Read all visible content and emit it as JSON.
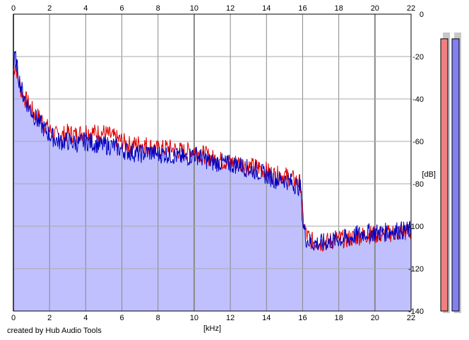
{
  "chart_data": {
    "type": "line",
    "title": "",
    "xlabel": "[kHz]",
    "ylabel": "[dB]",
    "xlim": [
      0,
      22
    ],
    "ylim": [
      -140,
      0
    ],
    "xticks": [
      "0",
      "2",
      "4",
      "6",
      "8",
      "10",
      "12",
      "14",
      "16",
      "18",
      "20",
      "22"
    ],
    "yticks": [
      "0",
      "-20",
      "-40",
      "-60",
      "-80",
      "-100",
      "-120",
      "-140"
    ],
    "grid": true,
    "series": [
      {
        "color": "#e00000",
        "x": [
          0,
          0.1,
          0.3,
          0.5,
          0.8,
          1.0,
          1.3,
          1.6,
          2.0,
          2.5,
          3.0,
          3.5,
          4.0,
          4.5,
          5.0,
          5.5,
          6.0,
          6.5,
          7.0,
          7.5,
          8.0,
          8.5,
          9.0,
          9.5,
          10.0,
          10.5,
          11.0,
          11.5,
          12.0,
          12.5,
          13.0,
          13.5,
          14.0,
          14.5,
          15.0,
          15.5,
          15.9,
          16.0,
          16.2,
          16.5,
          17.0,
          17.5,
          18.0,
          18.5,
          19.0,
          19.5,
          20.0,
          20.5,
          21.0,
          21.5,
          22.0
        ],
        "y": [
          -30,
          -22,
          -32,
          -38,
          -42,
          -45,
          -48,
          -50,
          -55,
          -58,
          -56,
          -57,
          -55,
          -56,
          -56,
          -58,
          -60,
          -62,
          -61,
          -62,
          -64,
          -63,
          -64,
          -65,
          -64,
          -66,
          -68,
          -69,
          -70,
          -70,
          -72,
          -72,
          -74,
          -76,
          -76,
          -78,
          -80,
          -96,
          -104,
          -107,
          -108,
          -107,
          -106,
          -106,
          -105,
          -104,
          -104,
          -104,
          -103,
          -103,
          -103
        ]
      },
      {
        "color": "#0000c0",
        "x": [
          0,
          0.1,
          0.3,
          0.5,
          0.8,
          1.0,
          1.3,
          1.6,
          2.0,
          2.5,
          3.0,
          3.5,
          4.0,
          4.5,
          5.0,
          5.5,
          6.0,
          6.5,
          7.0,
          7.5,
          8.0,
          8.5,
          9.0,
          9.5,
          10.0,
          10.5,
          11.0,
          11.5,
          12.0,
          12.5,
          13.0,
          13.5,
          14.0,
          14.5,
          15.0,
          15.5,
          15.9,
          16.0,
          16.2,
          16.5,
          17.0,
          17.5,
          18.0,
          18.5,
          19.0,
          19.5,
          20.0,
          20.5,
          21.0,
          21.5,
          22.0
        ],
        "y": [
          -25,
          -20,
          -30,
          -37,
          -43,
          -46,
          -50,
          -53,
          -57,
          -60,
          -60,
          -61,
          -60,
          -61,
          -62,
          -62,
          -64,
          -65,
          -66,
          -65,
          -66,
          -66,
          -67,
          -68,
          -66,
          -68,
          -70,
          -70,
          -71,
          -71,
          -73,
          -74,
          -76,
          -78,
          -78,
          -80,
          -82,
          -98,
          -106,
          -108,
          -108,
          -107,
          -106,
          -106,
          -104,
          -103,
          -103,
          -103,
          -102,
          -102,
          -102
        ]
      }
    ],
    "level_meters": [
      {
        "color": "#f08080",
        "level": 0.97
      },
      {
        "color": "#8080f0",
        "level": 0.97
      }
    ],
    "fill_color": "#c0c0ff"
  },
  "footer": {
    "credit": "created by Hub Audio Tools"
  }
}
